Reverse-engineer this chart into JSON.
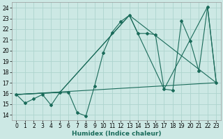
{
  "xlabel": "Humidex (Indice chaleur)",
  "bg_color": "#cce8e4",
  "grid_color": "#aed4ce",
  "line_color": "#1a6b5a",
  "xlim": [
    -0.5,
    23.5
  ],
  "ylim": [
    13.5,
    24.5
  ],
  "yticks": [
    14,
    15,
    16,
    17,
    18,
    19,
    20,
    21,
    22,
    23,
    24
  ],
  "xticks": [
    0,
    1,
    2,
    3,
    4,
    5,
    6,
    7,
    8,
    9,
    10,
    11,
    12,
    13,
    14,
    15,
    16,
    17,
    18,
    19,
    20,
    21,
    22,
    23
  ],
  "xtick_labels": [
    "0",
    "1",
    "2",
    "3",
    "4",
    "5",
    "6",
    "7",
    "8",
    "9",
    "10",
    "11",
    "12",
    "13",
    "14",
    "15",
    "16",
    "17",
    "18",
    "19",
    "20",
    "21",
    "22",
    "23"
  ],
  "line1_x": [
    0,
    1,
    2,
    3,
    4,
    5,
    6,
    7,
    8,
    9,
    10,
    11,
    12,
    13,
    14,
    15,
    16,
    17,
    18,
    19,
    20,
    21,
    22,
    23
  ],
  "line1_y": [
    15.9,
    15.1,
    15.5,
    15.9,
    14.9,
    16.1,
    16.1,
    14.2,
    13.9,
    16.7,
    19.8,
    21.7,
    22.7,
    23.3,
    21.6,
    21.6,
    21.5,
    16.4,
    16.3,
    22.8,
    20.9,
    18.1,
    24.1,
    17.0
  ],
  "line2_x": [
    0,
    5,
    13,
    23
  ],
  "line2_y": [
    15.9,
    16.1,
    23.3,
    17.0
  ],
  "line3_x": [
    0,
    5,
    13,
    17,
    22,
    23
  ],
  "line3_y": [
    15.9,
    16.1,
    23.3,
    16.4,
    24.1,
    17.0
  ],
  "line4_x": [
    0,
    23
  ],
  "line4_y": [
    15.9,
    17.0
  ]
}
